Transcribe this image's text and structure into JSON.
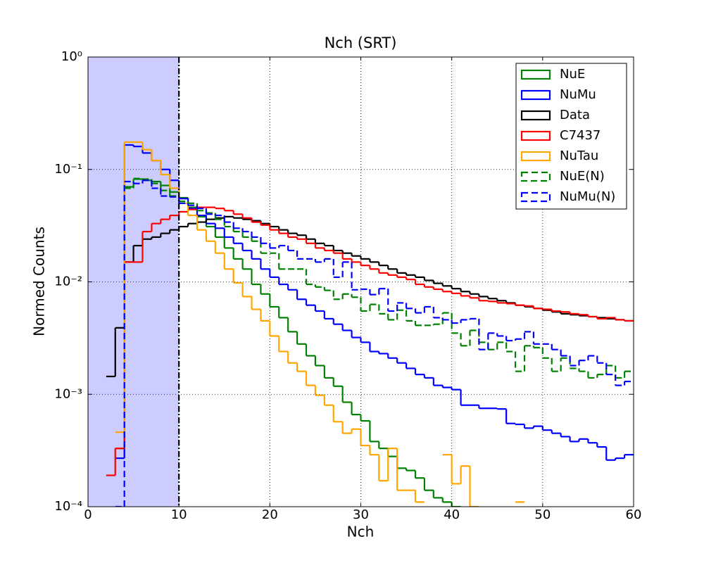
{
  "chart_data": {
    "type": "step-histogram",
    "title": "Nch (SRT)",
    "x_label": "Nch",
    "y_label": "Normed Counts",
    "bins": [
      2,
      3,
      4,
      5,
      6,
      7,
      8,
      9,
      10,
      11,
      12,
      13,
      14,
      15,
      16,
      17,
      18,
      19,
      20,
      21,
      22,
      23,
      24,
      25,
      26,
      27,
      28,
      29,
      30,
      31,
      32,
      33,
      34,
      35,
      36,
      37,
      38,
      39,
      40,
      41,
      42,
      43,
      44,
      45,
      46,
      47,
      48,
      49,
      50,
      51,
      52,
      53,
      54,
      55,
      56,
      57,
      58,
      59,
      60
    ],
    "series": [
      {
        "name": "NuE",
        "color": "#008000",
        "linestyle": "solid",
        "values": [
          null,
          0.00033,
          0.07,
          0.082,
          0.08,
          0.078,
          0.072,
          0.063,
          0.056,
          0.046,
          0.038,
          0.031,
          0.025,
          0.02,
          0.016,
          0.013,
          0.0095,
          0.0078,
          0.006,
          0.0048,
          0.0036,
          0.0028,
          0.0022,
          0.0018,
          0.0014,
          0.00118,
          0.00085,
          0.00066,
          0.00058,
          0.00038,
          0.00033,
          0.00028,
          0.00022,
          0.00021,
          0.00018,
          0.00014,
          0.00012,
          0.00011,
          0.0001,
          null,
          null,
          null,
          null,
          null,
          null,
          null,
          null,
          null,
          null,
          null,
          null,
          null,
          null,
          null,
          null,
          null,
          null,
          null
        ]
      },
      {
        "name": "NuMu",
        "color": "#0000ff",
        "linestyle": "solid",
        "values": [
          null,
          0.00027,
          0.165,
          0.16,
          0.14,
          0.12,
          0.1,
          0.08,
          0.055,
          0.045,
          0.039,
          0.033,
          0.03,
          0.025,
          0.022,
          0.019,
          0.016,
          0.013,
          0.011,
          0.0095,
          0.0085,
          0.007,
          0.0062,
          0.0055,
          0.0047,
          0.0042,
          0.0037,
          0.0032,
          0.0029,
          0.0024,
          0.0023,
          0.0021,
          0.0019,
          0.0017,
          0.0015,
          0.0014,
          0.0012,
          0.00115,
          0.0011,
          0.0008,
          0.0008,
          0.00075,
          0.00075,
          0.00074,
          0.00055,
          0.00054,
          0.0005,
          0.00052,
          0.00048,
          0.00045,
          0.00042,
          0.00038,
          0.0004,
          0.00037,
          0.00034,
          0.00026,
          0.00027,
          0.00029
        ]
      },
      {
        "name": "Data",
        "color": "#000000",
        "linestyle": "solid",
        "values": [
          0.00144,
          0.0039,
          0.015,
          0.021,
          0.024,
          0.025,
          0.027,
          0.029,
          0.031,
          0.033,
          0.034,
          0.036,
          0.037,
          0.038,
          0.037,
          0.036,
          0.035,
          0.033,
          0.031,
          0.029,
          0.027,
          0.026,
          0.024,
          0.022,
          0.021,
          0.019,
          0.018,
          0.017,
          0.016,
          0.015,
          0.014,
          0.013,
          0.012,
          0.0115,
          0.011,
          0.0103,
          0.0097,
          0.0092,
          0.0087,
          0.0082,
          0.0078,
          0.0074,
          0.0071,
          0.0068,
          0.0065,
          0.0062,
          0.006,
          0.0058,
          0.0056,
          0.0054,
          0.0052,
          0.0051,
          0.005,
          0.0049,
          0.0048,
          0.0047,
          0.0046,
          0.0045
        ]
      },
      {
        "name": "C7437",
        "color": "#ff0000",
        "linestyle": "solid",
        "values": [
          0.00019,
          0.00033,
          0.015,
          0.015,
          0.028,
          0.033,
          0.036,
          0.039,
          0.042,
          0.044,
          0.046,
          0.046,
          0.045,
          0.043,
          0.04,
          0.037,
          0.034,
          0.032,
          0.029,
          0.027,
          0.025,
          0.024,
          0.022,
          0.02,
          0.019,
          0.018,
          0.016,
          0.015,
          0.014,
          0.013,
          0.012,
          0.0115,
          0.011,
          0.0105,
          0.0095,
          0.009,
          0.0086,
          0.0082,
          0.0079,
          0.0075,
          0.0072,
          0.0068,
          0.0067,
          0.0065,
          0.0064,
          0.0062,
          0.0061,
          0.0058,
          0.0057,
          0.0055,
          0.0054,
          0.0052,
          0.0051,
          0.0049,
          0.0047,
          0.0048,
          0.0046,
          0.0045
        ]
      },
      {
        "name": "NuTau",
        "color": "#ffa500",
        "linestyle": "solid",
        "values": [
          null,
          0.00046,
          0.175,
          0.175,
          0.15,
          0.12,
          0.09,
          0.068,
          0.05,
          0.039,
          0.029,
          0.023,
          0.018,
          0.013,
          0.0098,
          0.0074,
          0.0057,
          0.0045,
          0.0033,
          0.0024,
          0.0019,
          0.0016,
          0.0012,
          0.00098,
          0.0008,
          0.00057,
          0.00045,
          0.00049,
          0.00035,
          0.00029,
          0.00017,
          0.00033,
          0.00014,
          0.00014,
          0.00011,
          null,
          null,
          0.00029,
          0.00016,
          0.00023,
          0.0001,
          null,
          null,
          null,
          null,
          0.00011,
          null,
          null,
          null,
          null,
          null,
          null,
          null,
          null,
          null,
          null,
          null,
          null
        ]
      },
      {
        "name": "NuE(N)",
        "color": "#008000",
        "linestyle": "dashed",
        "values": [
          null,
          null,
          0.068,
          0.083,
          0.082,
          0.075,
          0.065,
          0.058,
          0.052,
          0.05,
          0.043,
          0.041,
          0.036,
          0.031,
          0.028,
          0.025,
          0.023,
          0.018,
          0.018,
          0.013,
          0.013,
          0.013,
          0.0095,
          0.009,
          0.0084,
          0.007,
          0.0078,
          0.0073,
          0.0055,
          0.0063,
          0.0052,
          0.0046,
          0.0056,
          0.0045,
          0.0041,
          0.0041,
          0.0042,
          0.0053,
          0.0035,
          0.0027,
          0.0037,
          0.0029,
          0.0025,
          0.0029,
          0.0024,
          0.0016,
          0.0027,
          0.0026,
          0.0021,
          0.0016,
          0.0021,
          0.0017,
          0.0016,
          0.0014,
          0.0015,
          0.0018,
          0.0014,
          0.0016
        ]
      },
      {
        "name": "NuMu(N)",
        "color": "#0000ff",
        "linestyle": "dashed",
        "values": [
          null,
          0.0001,
          0.078,
          0.075,
          0.08,
          0.068,
          0.058,
          0.057,
          0.05,
          0.048,
          0.045,
          0.04,
          0.039,
          0.034,
          0.03,
          0.028,
          0.025,
          0.022,
          0.02,
          0.021,
          0.019,
          0.016,
          0.016,
          0.015,
          0.016,
          0.011,
          0.015,
          0.0085,
          0.0086,
          0.0077,
          0.0087,
          0.0055,
          0.0065,
          0.0058,
          0.0053,
          0.006,
          0.0048,
          0.0046,
          0.0043,
          0.0046,
          0.0047,
          0.0025,
          0.0035,
          0.0033,
          0.003,
          0.0031,
          0.0036,
          0.0028,
          0.0028,
          0.0025,
          0.0022,
          0.0018,
          0.002,
          0.0022,
          0.0019,
          0.0015,
          0.0012,
          0.0013
        ]
      }
    ],
    "xlim": [
      0,
      60
    ],
    "xticks": [
      0,
      10,
      20,
      30,
      40,
      50,
      60
    ],
    "ylim": [
      0.0001,
      1
    ],
    "yscale": "log",
    "yticks": [
      {
        "value": 1,
        "label": "10⁰"
      },
      {
        "value": 0.1,
        "label": "10⁻¹"
      },
      {
        "value": 0.01,
        "label": "10⁻²"
      },
      {
        "value": 0.001,
        "label": "10⁻³"
      },
      {
        "value": 0.0001,
        "label": "10⁻⁴"
      }
    ],
    "grid": true,
    "legend": "upper right",
    "shaded_span": {
      "xlim": [
        0,
        10
      ],
      "color": "#ccccff"
    },
    "vline": {
      "x": 10,
      "color": "#000000"
    }
  }
}
